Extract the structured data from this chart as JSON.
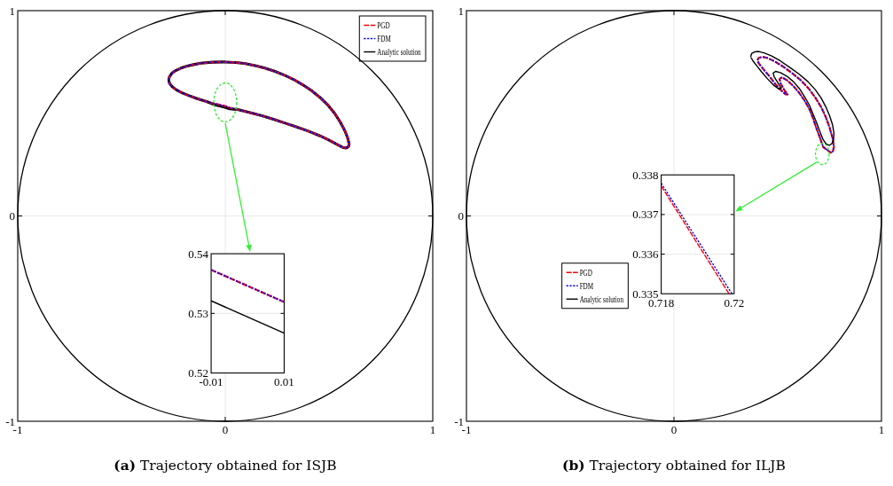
{
  "chart_data": [
    {
      "type": "line",
      "xlim": [
        -1,
        1
      ],
      "ylim": [
        -1,
        1
      ],
      "xticks": [
        -1,
        0,
        1
      ],
      "yticks": [
        -1,
        0,
        1
      ],
      "grid": true,
      "legend": "top right",
      "annotations": [
        "(a) Trajectory obtained for ISJB"
      ],
      "series": [
        {
          "name": "PGD",
          "color": "#ff0000",
          "line_style": "dashed",
          "x": [
            -0.272,
            -0.269,
            -0.258,
            -0.241,
            -0.216,
            -0.188,
            -0.153,
            -0.118,
            -0.062,
            -0.006,
            0.05,
            0.092,
            0.149,
            0.191,
            0.24,
            0.289,
            0.331,
            0.373,
            0.415,
            0.457,
            0.492,
            0.527,
            0.555,
            0.576,
            0.59,
            0.597,
            0.594,
            0.583,
            0.566,
            0.541,
            0.499,
            0.457,
            0.401,
            0.345,
            0.289,
            0.233,
            0.177,
            0.12,
            0.064,
            0.022,
            0,
            -0.048,
            -0.09,
            -0.132,
            -0.174,
            -0.209,
            -0.237,
            -0.258,
            -0.269,
            -0.271
          ],
          "values": [
            0.664,
            0.678,
            0.694,
            0.707,
            0.719,
            0.729,
            0.737,
            0.744,
            0.749,
            0.75,
            0.747,
            0.743,
            0.731,
            0.72,
            0.704,
            0.684,
            0.664,
            0.639,
            0.611,
            0.577,
            0.543,
            0.5,
            0.456,
            0.416,
            0.38,
            0.351,
            0.337,
            0.331,
            0.334,
            0.347,
            0.37,
            0.39,
            0.413,
            0.433,
            0.452,
            0.471,
            0.488,
            0.503,
            0.517,
            0.527,
            0.535,
            0.546,
            0.557,
            0.57,
            0.586,
            0.6,
            0.615,
            0.632,
            0.647,
            0.656
          ]
        },
        {
          "name": "FDM",
          "color": "#0000ff",
          "line_style": "dotted",
          "x": [
            -0.272,
            -0.269,
            -0.258,
            -0.241,
            -0.216,
            -0.188,
            -0.153,
            -0.118,
            -0.062,
            -0.006,
            0.05,
            0.092,
            0.149,
            0.191,
            0.24,
            0.289,
            0.331,
            0.373,
            0.415,
            0.457,
            0.492,
            0.527,
            0.555,
            0.576,
            0.59,
            0.597,
            0.594,
            0.583,
            0.566,
            0.541,
            0.499,
            0.457,
            0.401,
            0.345,
            0.289,
            0.233,
            0.177,
            0.12,
            0.064,
            0.022,
            0,
            -0.048,
            -0.09,
            -0.132,
            -0.174,
            -0.209,
            -0.237,
            -0.258,
            -0.269,
            -0.271
          ],
          "values": [
            0.664,
            0.678,
            0.694,
            0.707,
            0.719,
            0.729,
            0.737,
            0.744,
            0.749,
            0.75,
            0.747,
            0.743,
            0.731,
            0.72,
            0.704,
            0.684,
            0.664,
            0.639,
            0.611,
            0.577,
            0.543,
            0.5,
            0.456,
            0.416,
            0.38,
            0.351,
            0.337,
            0.331,
            0.334,
            0.347,
            0.37,
            0.39,
            0.413,
            0.433,
            0.452,
            0.471,
            0.488,
            0.503,
            0.517,
            0.527,
            0.535,
            0.546,
            0.557,
            0.57,
            0.586,
            0.6,
            0.615,
            0.632,
            0.647,
            0.656
          ]
        },
        {
          "name": "Analytic solution",
          "color": "#000000",
          "line_style": "solid",
          "x": [
            -0.272,
            -0.269,
            -0.258,
            -0.241,
            -0.216,
            -0.188,
            -0.153,
            -0.118,
            -0.062,
            -0.006,
            0.05,
            0.092,
            0.149,
            0.191,
            0.24,
            0.289,
            0.331,
            0.373,
            0.415,
            0.457,
            0.492,
            0.527,
            0.555,
            0.576,
            0.59,
            0.597,
            0.594,
            0.583,
            0.566,
            0.541,
            0.499,
            0.457,
            0.401,
            0.345,
            0.289,
            0.233,
            0.177,
            0.12,
            0.064,
            0.022,
            0,
            -0.048,
            -0.09,
            -0.132,
            -0.174,
            -0.209,
            -0.237,
            -0.258,
            -0.269,
            -0.271
          ],
          "values": [
            0.664,
            0.678,
            0.694,
            0.707,
            0.719,
            0.729,
            0.737,
            0.744,
            0.749,
            0.75,
            0.747,
            0.743,
            0.731,
            0.72,
            0.704,
            0.684,
            0.664,
            0.639,
            0.611,
            0.577,
            0.543,
            0.5,
            0.456,
            0.416,
            0.38,
            0.351,
            0.337,
            0.331,
            0.334,
            0.347,
            0.37,
            0.39,
            0.413,
            0.433,
            0.452,
            0.471,
            0.488,
            0.503,
            0.517,
            0.522,
            0.529,
            0.541,
            0.557,
            0.57,
            0.586,
            0.6,
            0.615,
            0.632,
            0.647,
            0.656
          ]
        }
      ]
    },
    {
      "type": "line",
      "xlim": [
        -0.01,
        0.01
      ],
      "ylim": [
        0.52,
        0.54
      ],
      "xticks": [
        -0.01,
        0.01
      ],
      "yticks": [
        0.52,
        0.53,
        0.54
      ],
      "grid": true,
      "series": [
        {
          "color": "#ff0000",
          "line_style": "dashed",
          "x": [
            -0.01,
            0.01
          ],
          "values": [
            0.5373,
            0.5319
          ]
        },
        {
          "color": "#0000ff",
          "line_style": "dotted",
          "x": [
            -0.01,
            0.01
          ],
          "values": [
            0.5373,
            0.5319
          ]
        },
        {
          "color": "#000000",
          "line_style": "solid",
          "x": [
            -0.01,
            0.01
          ],
          "values": [
            0.5321,
            0.5267
          ]
        }
      ]
    },
    {
      "type": "line",
      "xlim": [
        -1,
        1
      ],
      "ylim": [
        -1,
        1
      ],
      "xticks": [
        -1,
        0,
        1
      ],
      "yticks": [
        -1,
        0,
        1
      ],
      "grid": true,
      "legend": "left",
      "annotations": [
        "(b) Trajectory obtained for ILJB"
      ],
      "series": [
        {
          "name": "PGD",
          "color": "#ff0000",
          "line_style": "dashed",
          "x": [
            0.402,
            0.409,
            0.425,
            0.451,
            0.485,
            0.527,
            0.569,
            0.611,
            0.649,
            0.681,
            0.709,
            0.732,
            0.75,
            0.764,
            0.771,
            0.766,
            0.755,
            0.743,
            0.719,
            0.704,
            0.688,
            0.671,
            0.653,
            0.629,
            0.601,
            0.573,
            0.545,
            0.52,
            0.509,
            0.513,
            0.527,
            0.541,
            0.548,
            0.538,
            0.513,
            0.485,
            0.458,
            0.43,
            0.411,
            0.404
          ],
          "values": [
            0.759,
            0.77,
            0.775,
            0.769,
            0.753,
            0.727,
            0.696,
            0.661,
            0.621,
            0.577,
            0.531,
            0.481,
            0.431,
            0.38,
            0.337,
            0.315,
            0.308,
            0.318,
            0.336,
            0.38,
            0.423,
            0.474,
            0.52,
            0.563,
            0.603,
            0.635,
            0.661,
            0.675,
            0.668,
            0.647,
            0.621,
            0.6,
            0.592,
            0.592,
            0.615,
            0.647,
            0.683,
            0.716,
            0.74,
            0.752
          ]
        },
        {
          "name": "FDM",
          "color": "#0000ff",
          "line_style": "dotted",
          "x": [
            0.402,
            0.409,
            0.425,
            0.451,
            0.485,
            0.527,
            0.569,
            0.611,
            0.649,
            0.681,
            0.709,
            0.732,
            0.75,
            0.764,
            0.771,
            0.766,
            0.755,
            0.743,
            0.719,
            0.704,
            0.688,
            0.671,
            0.653,
            0.629,
            0.601,
            0.573,
            0.545,
            0.52,
            0.509,
            0.513,
            0.527,
            0.541,
            0.548,
            0.538,
            0.513,
            0.485,
            0.458,
            0.43,
            0.411,
            0.404
          ],
          "values": [
            0.759,
            0.77,
            0.775,
            0.769,
            0.753,
            0.727,
            0.696,
            0.661,
            0.621,
            0.577,
            0.531,
            0.481,
            0.431,
            0.38,
            0.337,
            0.315,
            0.308,
            0.318,
            0.336,
            0.38,
            0.423,
            0.474,
            0.52,
            0.563,
            0.603,
            0.635,
            0.661,
            0.675,
            0.668,
            0.647,
            0.621,
            0.6,
            0.592,
            0.592,
            0.615,
            0.647,
            0.683,
            0.716,
            0.74,
            0.752
          ]
        },
        {
          "name": "Analytic solution",
          "color": "#000000",
          "line_style": "solid",
          "x": [
            0.37,
            0.374,
            0.388,
            0.409,
            0.437,
            0.471,
            0.513,
            0.562,
            0.604,
            0.646,
            0.681,
            0.709,
            0.732,
            0.75,
            0.764,
            0.771,
            0.769,
            0.76,
            0.748,
            0.734,
            0.718,
            0.704,
            0.688,
            0.671,
            0.653,
            0.629,
            0.604,
            0.576,
            0.545,
            0.513,
            0.49,
            0.478,
            0.483,
            0.495,
            0.509,
            0.517,
            0.506,
            0.478,
            0.451,
            0.423,
            0.398,
            0.381,
            0.372
          ],
          "values": [
            0.776,
            0.791,
            0.799,
            0.801,
            0.793,
            0.779,
            0.755,
            0.721,
            0.69,
            0.654,
            0.615,
            0.575,
            0.531,
            0.488,
            0.445,
            0.402,
            0.37,
            0.351,
            0.344,
            0.35,
            0.373,
            0.409,
            0.452,
            0.495,
            0.539,
            0.582,
            0.621,
            0.654,
            0.68,
            0.698,
            0.704,
            0.696,
            0.678,
            0.658,
            0.635,
            0.621,
            0.618,
            0.639,
            0.668,
            0.701,
            0.733,
            0.755,
            0.77
          ]
        }
      ]
    },
    {
      "type": "line",
      "xlim": [
        0.718,
        0.72
      ],
      "ylim": [
        0.335,
        0.338
      ],
      "xticks": [
        0.718,
        0.72
      ],
      "yticks": [
        0.335,
        0.336,
        0.337,
        0.338
      ],
      "grid": true,
      "series": [
        {
          "color": "#ff0000",
          "line_style": "dashed",
          "x": [
            0.718,
            0.71986
          ],
          "values": [
            0.33772,
            0.335
          ]
        },
        {
          "color": "#0000ff",
          "line_style": "dotted",
          "x": [
            0.718,
            0.71994
          ],
          "values": [
            0.33779,
            0.335
          ]
        }
      ]
    }
  ]
}
